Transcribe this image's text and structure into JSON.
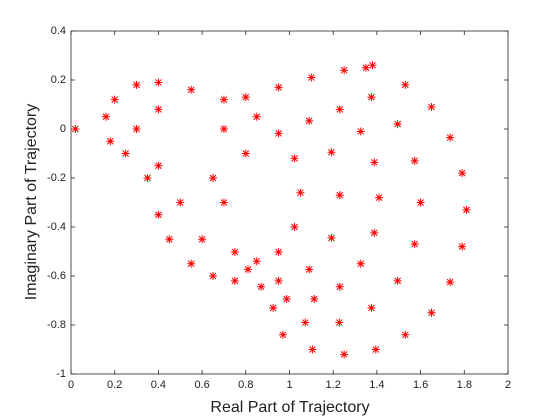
{
  "chart_data": {
    "type": "scatter",
    "xlabel": "Real Part of Trajectory",
    "ylabel": "Imaginary Part of Trajectory",
    "color": "#ff0000",
    "xlim": [
      0,
      2
    ],
    "ylim": [
      -1,
      0.4
    ],
    "xticks": [
      0,
      0.2,
      0.4,
      0.6,
      0.8,
      1,
      1.2,
      1.4,
      1.6,
      1.8,
      2
    ],
    "yticks": [
      -1,
      -0.8,
      -0.6,
      -0.4,
      -0.2,
      0,
      0.2,
      0.4
    ],
    "x": [
      1.35,
      1.53,
      1.65,
      1.735,
      1.79,
      1.81,
      1.79,
      1.735,
      1.65,
      1.53,
      1.395,
      1.25,
      1.105,
      0.97,
      1.375,
      1.495,
      1.573,
      1.6,
      1.573,
      1.495,
      1.375,
      1.228,
      1.072,
      0.925,
      1.23,
      1.326,
      1.388,
      1.41,
      1.388,
      1.326,
      1.23,
      1.113,
      0.987,
      0.87,
      1.09,
      1.192,
      1.23,
      1.192,
      1.09,
      0.95,
      0.81,
      0.95,
      1.023,
      1.05,
      1.023,
      0.95,
      0.85,
      0.75,
      0.8,
      0.95,
      1.1,
      1.25,
      1.38,
      0.16,
      0.2,
      0.3,
      0.4,
      0.55,
      0.7,
      0.18,
      0.25,
      0.35,
      0.4,
      0.45,
      0.55,
      0.65,
      0.75,
      0.3,
      0.4,
      0.7,
      0.8,
      0.7,
      0.4,
      0.5,
      0.6,
      0.85,
      0.65,
      0.02
    ],
    "values": [
      0.25,
      0.18,
      0.09,
      -0.035,
      -0.18,
      -0.33,
      -0.48,
      -0.625,
      -0.75,
      -0.84,
      -0.9,
      -0.92,
      -0.9,
      -0.84,
      0.13,
      0.02,
      -0.13,
      -0.3,
      -0.47,
      -0.62,
      -0.73,
      -0.79,
      -0.79,
      -0.73,
      0.08,
      -0.01,
      -0.136,
      -0.28,
      -0.424,
      -0.55,
      -0.644,
      -0.694,
      -0.694,
      -0.644,
      0.033,
      -0.095,
      -0.27,
      -0.445,
      -0.573,
      -0.62,
      -0.573,
      -0.018,
      -0.12,
      -0.26,
      -0.4,
      -0.502,
      -0.54,
      -0.502,
      0.13,
      0.17,
      0.21,
      0.24,
      0.26,
      0.05,
      0.12,
      0.18,
      0.19,
      0.16,
      0.12,
      -0.05,
      -0.1,
      -0.2,
      -0.35,
      -0.45,
      -0.55,
      -0.6,
      -0.62,
      0,
      0.08,
      -0.3,
      -0.1,
      0,
      -0.15,
      -0.3,
      -0.45,
      0.05,
      -0.2,
      0
    ]
  }
}
